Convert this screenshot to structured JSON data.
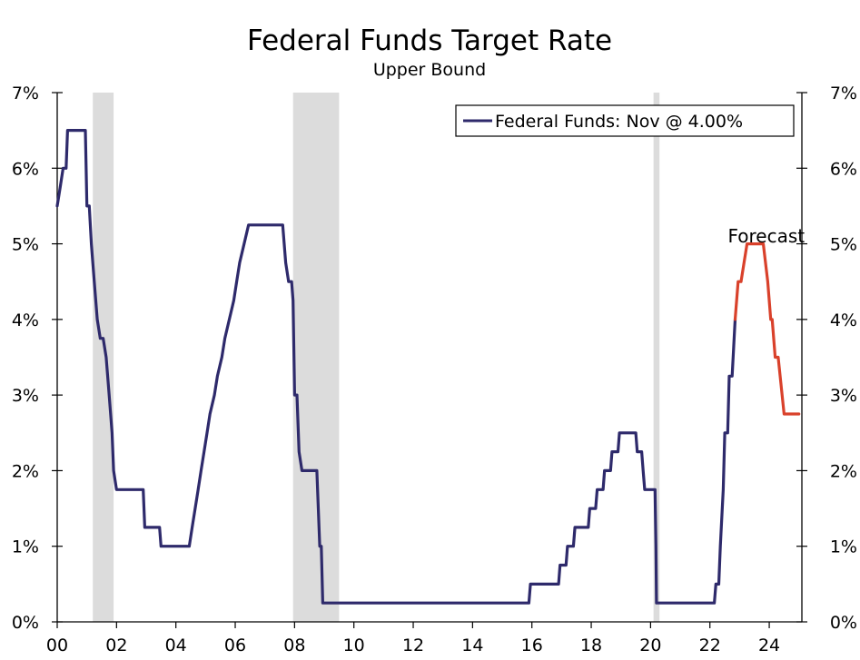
{
  "chart_data": {
    "type": "line",
    "title": "Federal Funds Target Rate",
    "subtitle": "Upper Bound",
    "xlim": [
      2000,
      2025.1
    ],
    "ylim": [
      0,
      7
    ],
    "x_ticks": [
      {
        "value": 2000,
        "label": "00"
      },
      {
        "value": 2002,
        "label": "02"
      },
      {
        "value": 2004,
        "label": "04"
      },
      {
        "value": 2006,
        "label": "06"
      },
      {
        "value": 2008,
        "label": "08"
      },
      {
        "value": 2010,
        "label": "10"
      },
      {
        "value": 2012,
        "label": "12"
      },
      {
        "value": 2014,
        "label": "14"
      },
      {
        "value": 2016,
        "label": "16"
      },
      {
        "value": 2018,
        "label": "18"
      },
      {
        "value": 2020,
        "label": "20"
      },
      {
        "value": 2022,
        "label": "22"
      },
      {
        "value": 2024,
        "label": "24"
      }
    ],
    "y_ticks": [
      {
        "value": 0,
        "label": "0%"
      },
      {
        "value": 1,
        "label": "1%"
      },
      {
        "value": 2,
        "label": "2%"
      },
      {
        "value": 3,
        "label": "3%"
      },
      {
        "value": 4,
        "label": "4%"
      },
      {
        "value": 5,
        "label": "5%"
      },
      {
        "value": 6,
        "label": "6%"
      },
      {
        "value": 7,
        "label": "7%"
      }
    ],
    "legend": {
      "label": "Federal Funds: Nov @ 4.00%",
      "position": "top-right"
    },
    "annotation": {
      "text": "Forecast",
      "x": 2023.9,
      "y": 5.1
    },
    "recessions": [
      [
        2001.2,
        2001.9
      ],
      [
        2007.95,
        2009.5
      ],
      [
        2020.1,
        2020.3
      ]
    ],
    "colors": {
      "actual": "#2e2a6b",
      "forecast": "#d9412b",
      "recession": "#dcdcdc"
    },
    "series": [
      {
        "name": "Federal Funds",
        "color": "#2e2a6b",
        "points": [
          [
            2000.0,
            5.5
          ],
          [
            2000.1,
            5.75
          ],
          [
            2000.2,
            6.0
          ],
          [
            2000.3,
            6.0
          ],
          [
            2000.35,
            6.5
          ],
          [
            2000.95,
            6.5
          ],
          [
            2001.0,
            5.5
          ],
          [
            2001.08,
            5.5
          ],
          [
            2001.15,
            5.0
          ],
          [
            2001.25,
            4.5
          ],
          [
            2001.35,
            4.0
          ],
          [
            2001.45,
            3.75
          ],
          [
            2001.55,
            3.75
          ],
          [
            2001.65,
            3.5
          ],
          [
            2001.75,
            3.0
          ],
          [
            2001.85,
            2.5
          ],
          [
            2001.9,
            2.0
          ],
          [
            2002.0,
            1.75
          ],
          [
            2002.9,
            1.75
          ],
          [
            2002.95,
            1.25
          ],
          [
            2003.45,
            1.25
          ],
          [
            2003.5,
            1.0
          ],
          [
            2004.45,
            1.0
          ],
          [
            2004.55,
            1.25
          ],
          [
            2004.65,
            1.5
          ],
          [
            2004.75,
            1.75
          ],
          [
            2004.85,
            2.0
          ],
          [
            2004.95,
            2.25
          ],
          [
            2005.05,
            2.5
          ],
          [
            2005.15,
            2.75
          ],
          [
            2005.3,
            3.0
          ],
          [
            2005.4,
            3.25
          ],
          [
            2005.55,
            3.5
          ],
          [
            2005.65,
            3.75
          ],
          [
            2005.8,
            4.0
          ],
          [
            2005.95,
            4.25
          ],
          [
            2006.05,
            4.5
          ],
          [
            2006.15,
            4.75
          ],
          [
            2006.3,
            5.0
          ],
          [
            2006.45,
            5.25
          ],
          [
            2007.6,
            5.25
          ],
          [
            2007.7,
            4.75
          ],
          [
            2007.8,
            4.5
          ],
          [
            2007.9,
            4.5
          ],
          [
            2007.95,
            4.25
          ],
          [
            2008.0,
            3.0
          ],
          [
            2008.08,
            3.0
          ],
          [
            2008.15,
            2.25
          ],
          [
            2008.25,
            2.0
          ],
          [
            2008.75,
            2.0
          ],
          [
            2008.8,
            1.5
          ],
          [
            2008.85,
            1.0
          ],
          [
            2008.9,
            1.0
          ],
          [
            2008.95,
            0.25
          ],
          [
            2015.9,
            0.25
          ],
          [
            2015.95,
            0.5
          ],
          [
            2016.9,
            0.5
          ],
          [
            2016.95,
            0.75
          ],
          [
            2017.15,
            0.75
          ],
          [
            2017.2,
            1.0
          ],
          [
            2017.4,
            1.0
          ],
          [
            2017.45,
            1.25
          ],
          [
            2017.9,
            1.25
          ],
          [
            2017.95,
            1.5
          ],
          [
            2018.15,
            1.5
          ],
          [
            2018.2,
            1.75
          ],
          [
            2018.4,
            1.75
          ],
          [
            2018.45,
            2.0
          ],
          [
            2018.65,
            2.0
          ],
          [
            2018.7,
            2.25
          ],
          [
            2018.9,
            2.25
          ],
          [
            2018.95,
            2.5
          ],
          [
            2019.5,
            2.5
          ],
          [
            2019.55,
            2.25
          ],
          [
            2019.7,
            2.25
          ],
          [
            2019.75,
            2.0
          ],
          [
            2019.8,
            1.75
          ],
          [
            2020.15,
            1.75
          ],
          [
            2020.18,
            1.0
          ],
          [
            2020.2,
            0.25
          ],
          [
            2022.15,
            0.25
          ],
          [
            2022.2,
            0.5
          ],
          [
            2022.3,
            0.5
          ],
          [
            2022.35,
            1.0
          ],
          [
            2022.45,
            1.75
          ],
          [
            2022.5,
            2.5
          ],
          [
            2022.6,
            2.5
          ],
          [
            2022.65,
            3.25
          ],
          [
            2022.75,
            3.25
          ],
          [
            2022.85,
            4.0
          ]
        ]
      },
      {
        "name": "Forecast",
        "color": "#d9412b",
        "points": [
          [
            2022.85,
            4.0
          ],
          [
            2022.95,
            4.5
          ],
          [
            2023.05,
            4.5
          ],
          [
            2023.15,
            4.75
          ],
          [
            2023.25,
            5.0
          ],
          [
            2023.8,
            5.0
          ],
          [
            2023.95,
            4.5
          ],
          [
            2024.05,
            4.0
          ],
          [
            2024.1,
            4.0
          ],
          [
            2024.2,
            3.5
          ],
          [
            2024.3,
            3.5
          ],
          [
            2024.5,
            2.75
          ],
          [
            2025.0,
            2.75
          ]
        ]
      }
    ]
  }
}
